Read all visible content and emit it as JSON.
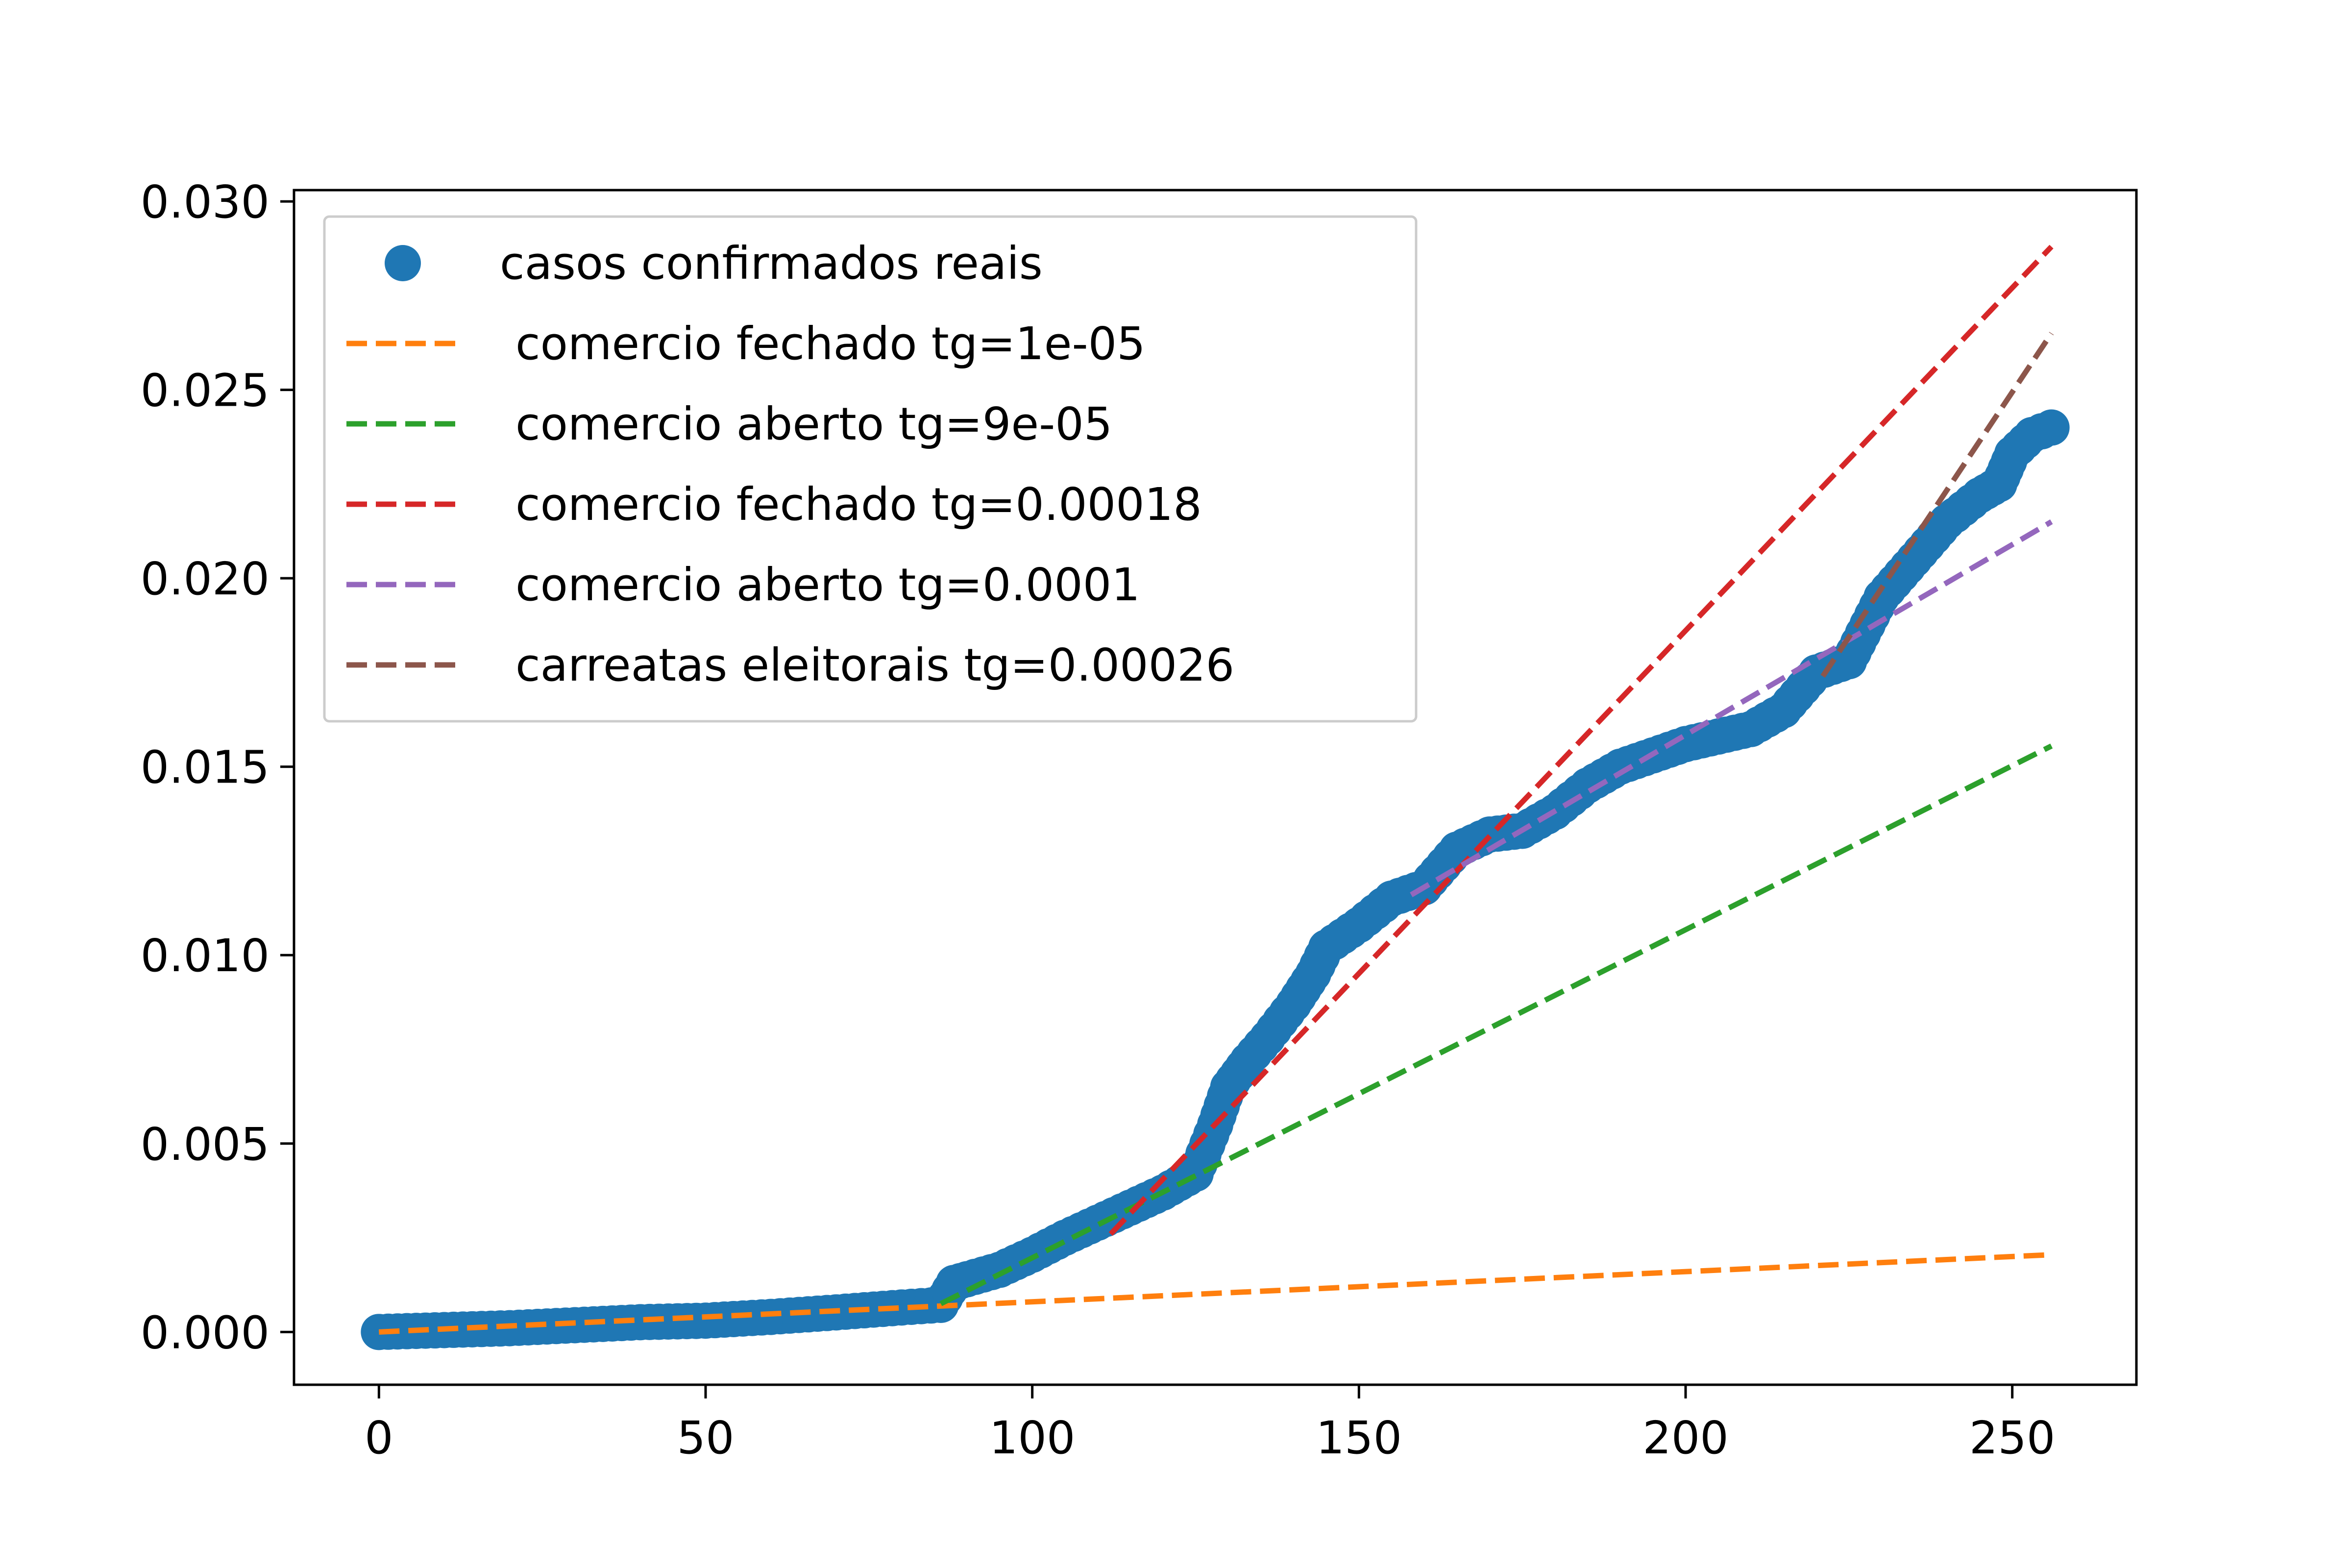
{
  "chart_data": {
    "type": "line",
    "title": "",
    "xlabel": "",
    "ylabel": "",
    "xlim": [
      -13,
      269
    ],
    "ylim": [
      -0.0014,
      0.0303
    ],
    "grid": false,
    "legend_placement": "top-left",
    "x_ticks": [
      0,
      50,
      100,
      150,
      200,
      250
    ],
    "x_tick_labels": [
      "0",
      "50",
      "100",
      "150",
      "200",
      "250"
    ],
    "y_ticks": [
      0.0,
      0.005,
      0.01,
      0.015,
      0.02,
      0.025,
      0.03
    ],
    "y_tick_labels": [
      "0.000",
      "0.005",
      "0.010",
      "0.015",
      "0.020",
      "0.025",
      "0.030"
    ],
    "series": [
      {
        "name": "casos confirmados reais",
        "style": "markers",
        "color": "#1f77b4",
        "x": [
          0,
          10,
          20,
          30,
          40,
          50,
          60,
          70,
          80,
          86,
          88,
          90,
          95,
          100,
          105,
          110,
          115,
          120,
          125,
          128,
          130,
          133,
          136,
          140,
          143,
          145,
          150,
          155,
          160,
          165,
          170,
          175,
          180,
          185,
          190,
          195,
          200,
          205,
          210,
          215,
          220,
          225,
          230,
          235,
          240,
          245,
          248,
          250,
          253,
          256
        ],
        "y": [
          0.0,
          5e-05,
          0.0001,
          0.00018,
          0.00026,
          0.0003,
          0.0004,
          0.00052,
          0.00065,
          0.00072,
          0.0013,
          0.0014,
          0.00165,
          0.00205,
          0.0025,
          0.0029,
          0.0033,
          0.0037,
          0.0042,
          0.0055,
          0.0065,
          0.0072,
          0.0078,
          0.0087,
          0.0095,
          0.0102,
          0.0108,
          0.0115,
          0.0118,
          0.0128,
          0.0132,
          0.0133,
          0.0138,
          0.0145,
          0.015,
          0.0153,
          0.0156,
          0.0158,
          0.016,
          0.0165,
          0.0175,
          0.0178,
          0.0195,
          0.0205,
          0.0215,
          0.0222,
          0.0225,
          0.0233,
          0.0238,
          0.024
        ]
      },
      {
        "name": "comercio fechado tg=1e-05",
        "style": "dashed",
        "color": "#ff7f0e",
        "x": [
          0,
          256
        ],
        "y": [
          0.0,
          0.00205
        ]
      },
      {
        "name": "comercio aberto tg=9e-05",
        "style": "dashed",
        "color": "#2ca02c",
        "x": [
          86,
          256
        ],
        "y": [
          0.00075,
          0.01555
        ]
      },
      {
        "name": "comercio fechado tg=0.00018",
        "style": "dashed",
        "color": "#d62728",
        "x": [
          112,
          256
        ],
        "y": [
          0.0026,
          0.0288
        ]
      },
      {
        "name": "comercio aberto tg=0.0001",
        "style": "dashed",
        "color": "#9467bd",
        "x": [
          158,
          256
        ],
        "y": [
          0.0116,
          0.0215
        ]
      },
      {
        "name": "carreatas eleitorais tg=0.00026",
        "style": "dashed",
        "color": "#8c564b",
        "x": [
          221,
          256
        ],
        "y": [
          0.0174,
          0.0265
        ]
      }
    ]
  }
}
